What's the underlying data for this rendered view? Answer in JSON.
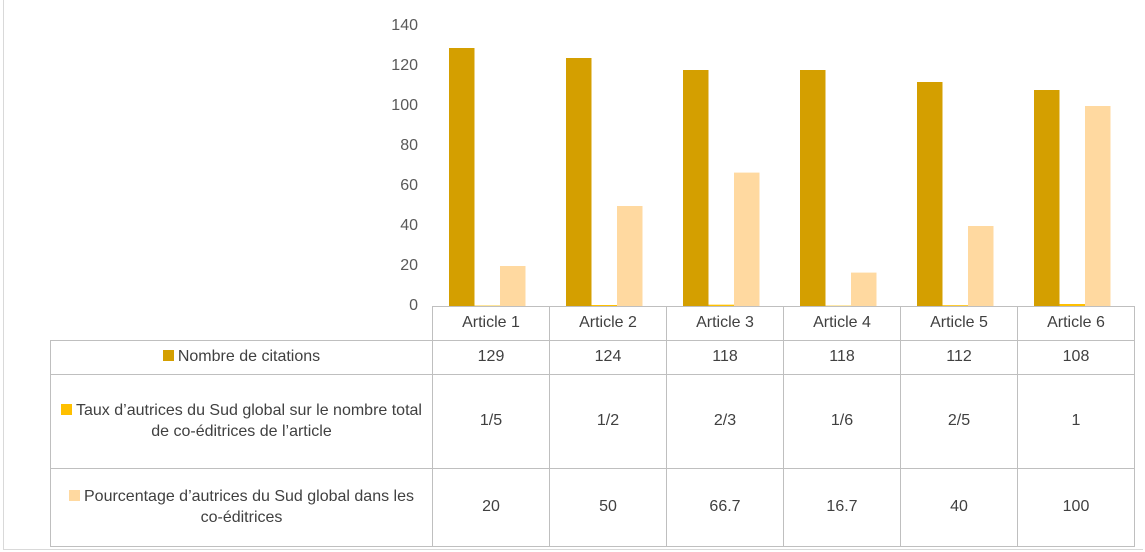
{
  "chart_data": {
    "type": "bar",
    "categories": [
      "Article 1",
      "Article 2",
      "Article 3",
      "Article 4",
      "Article 5",
      "Article 6"
    ],
    "series": [
      {
        "name": "Nombre de citations",
        "color": "#d49f00",
        "values": [
          129,
          124,
          118,
          118,
          112,
          108
        ]
      },
      {
        "name": "Taux d’autrices du Sud global sur le nombre total de co-éditrices de l’article",
        "color": "#ffc000",
        "values": [
          0.2,
          0.5,
          0.667,
          0.167,
          0.4,
          1
        ],
        "value_labels": [
          "1/5",
          "1/2",
          "2/3",
          "1/6",
          "2/5",
          "1"
        ]
      },
      {
        "name": "Pourcentage d’autrices du Sud global dans les co-éditrices",
        "color": "#ffd9a0",
        "values": [
          20,
          50,
          66.7,
          16.7,
          40,
          100
        ]
      }
    ],
    "ylim": [
      0,
      140
    ],
    "yticks": [
      0,
      20,
      40,
      60,
      80,
      100,
      120,
      140
    ],
    "grid": false,
    "data_table": true
  }
}
